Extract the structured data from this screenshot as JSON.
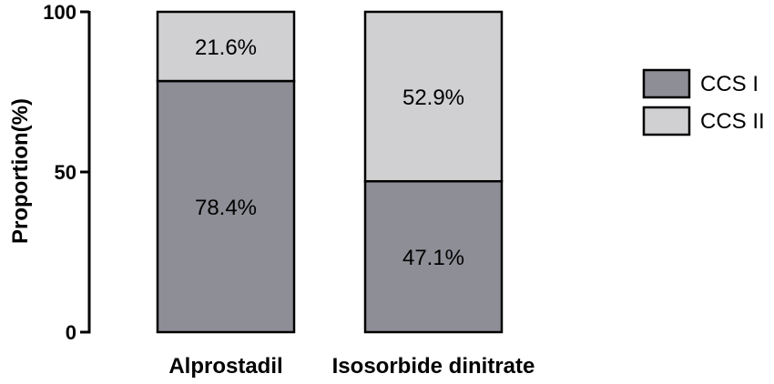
{
  "chart_data": {
    "type": "bar",
    "stacked": true,
    "categories": [
      "Alprostadil",
      "Isosorbide dinitrate"
    ],
    "series": [
      {
        "name": "CCS I",
        "color": "#8e8e96",
        "values": [
          78.4,
          47.1
        ],
        "labels": [
          "78.4%",
          "47.1%"
        ]
      },
      {
        "name": "CCS II",
        "color": "#d0d0d2",
        "values": [
          21.6,
          52.9
        ],
        "labels": [
          "21.6%",
          "52.9%"
        ]
      }
    ],
    "title": "",
    "xlabel": "",
    "ylabel": "Proportion(%)",
    "ylim": [
      0,
      100
    ],
    "yticks": [
      0,
      50,
      100
    ],
    "ytick_labels": [
      "0",
      "50",
      "100"
    ],
    "grid": false,
    "legend": "right"
  }
}
